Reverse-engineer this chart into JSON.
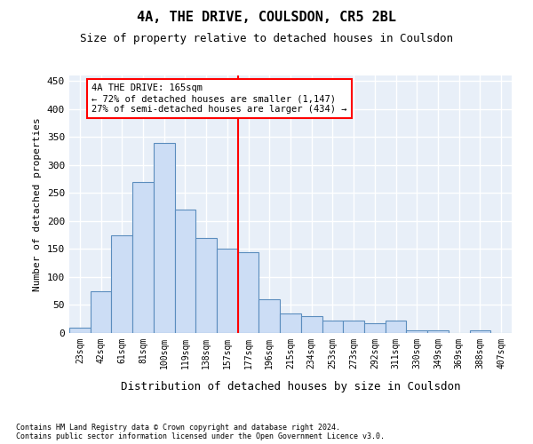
{
  "title": "4A, THE DRIVE, COULSDON, CR5 2BL",
  "subtitle": "Size of property relative to detached houses in Coulsdon",
  "xlabel": "Distribution of detached houses by size in Coulsdon",
  "ylabel": "Number of detached properties",
  "bar_color": "#ccddf5",
  "bar_edge_color": "#5b8dbe",
  "axes_bg_color": "#e8eff8",
  "grid_color": "#ffffff",
  "categories": [
    "23sqm",
    "42sqm",
    "61sqm",
    "81sqm",
    "100sqm",
    "119sqm",
    "138sqm",
    "157sqm",
    "177sqm",
    "196sqm",
    "215sqm",
    "234sqm",
    "253sqm",
    "273sqm",
    "292sqm",
    "311sqm",
    "330sqm",
    "349sqm",
    "369sqm",
    "388sqm",
    "407sqm"
  ],
  "values": [
    10,
    75,
    175,
    270,
    340,
    220,
    170,
    150,
    145,
    60,
    35,
    30,
    22,
    22,
    17,
    22,
    5,
    5,
    0,
    5,
    0
  ],
  "ylim": [
    0,
    460
  ],
  "yticks": [
    0,
    50,
    100,
    150,
    200,
    250,
    300,
    350,
    400,
    450
  ],
  "property_line_bin": 7,
  "annotation_title": "4A THE DRIVE: 165sqm",
  "annotation_line1": "← 72% of detached houses are smaller (1,147)",
  "annotation_line2": "27% of semi-detached houses are larger (434) →",
  "footer1": "Contains HM Land Registry data © Crown copyright and database right 2024.",
  "footer2": "Contains public sector information licensed under the Open Government Licence v3.0."
}
